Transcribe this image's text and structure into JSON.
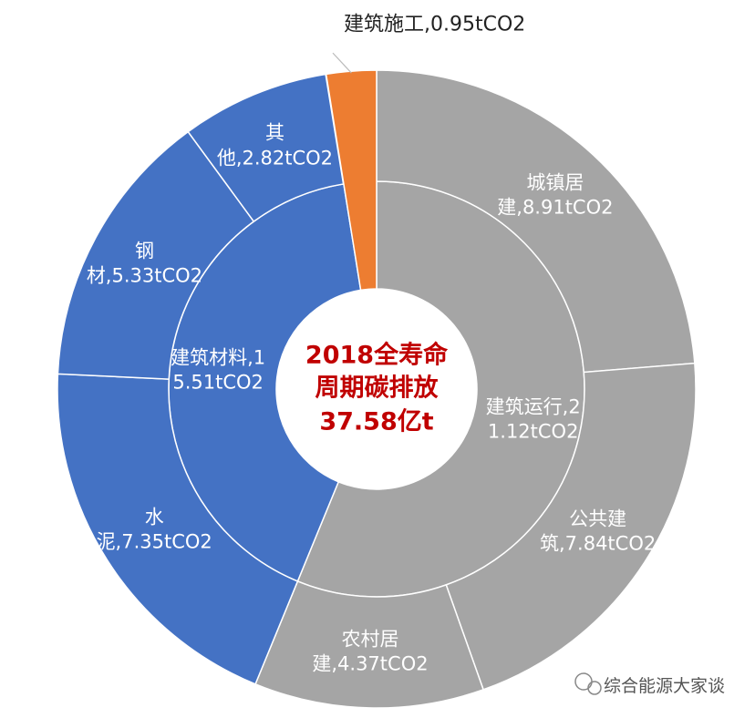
{
  "chart_data": {
    "type": "sunburst",
    "center_title": "2018全寿命周期碳排放37.58亿t",
    "segments": [
      {
        "label": "建筑运行,21.12tCO2",
        "value": 21.12,
        "color": "#a5a5a5",
        "children": [
          {
            "label": "城镇居建,8.91tCO2",
            "value": 8.91
          },
          {
            "label": "公共建筑,7.84tCO2",
            "value": 7.84
          },
          {
            "label": "农村居建,4.37tCO2",
            "value": 4.37
          }
        ]
      },
      {
        "label": "建筑材料,15.51tCO2",
        "value": 15.51,
        "color": "#4472c4",
        "children": [
          {
            "label": "水泥,7.35tCO2",
            "value": 7.35
          },
          {
            "label": "钢材,5.33tCO2",
            "value": 5.33
          },
          {
            "label": "其他,2.82tCO2",
            "value": 2.82
          }
        ]
      },
      {
        "label": "建筑施工,0.95tCO2",
        "value": 0.95,
        "color": "#ed7d31"
      }
    ],
    "watermark": "综合能源大家谈"
  }
}
